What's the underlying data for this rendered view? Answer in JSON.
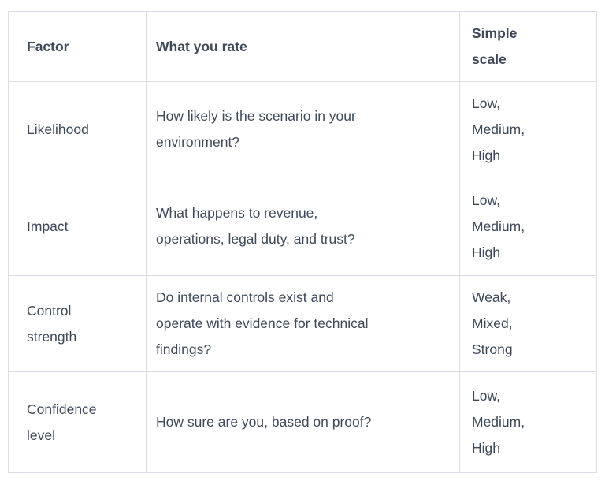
{
  "colors": {
    "background": "#ffffff",
    "text": "#3e4a59",
    "border": "#dbdde4"
  },
  "table": {
    "columns": [
      {
        "key": "factor",
        "label": "Factor"
      },
      {
        "key": "what_you_rate",
        "label": "What you rate"
      },
      {
        "key": "simple_scale",
        "label": "Simple\nscale"
      }
    ],
    "rows": [
      {
        "factor": "Likelihood",
        "what_you_rate": "How likely is the scenario in your\nenvironment?",
        "simple_scale": "Low,\nMedium,\nHigh"
      },
      {
        "factor": "Impact",
        "what_you_rate": "What happens to revenue,\noperations, legal duty, and trust?",
        "simple_scale": "Low,\nMedium,\nHigh"
      },
      {
        "factor": "Control\nstrength",
        "what_you_rate": "Do internal controls exist and\noperate with evidence for technical\nfindings?",
        "simple_scale": "Weak,\nMixed,\nStrong"
      },
      {
        "factor": "Confidence\nlevel",
        "what_you_rate": "How sure are you, based on proof?",
        "simple_scale": "Low,\nMedium,\nHigh"
      }
    ]
  }
}
